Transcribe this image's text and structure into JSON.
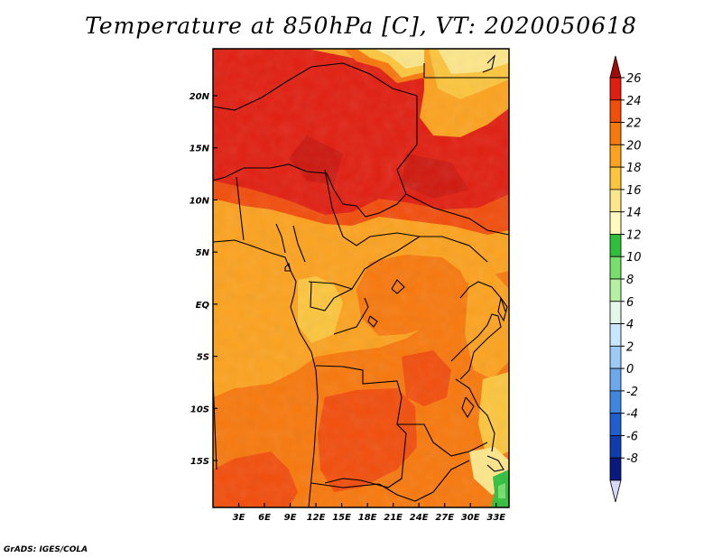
{
  "title": "Temperature at 850hPa [C], VT: 2020050618",
  "credit": "GrADS: IGES/COLA",
  "map": {
    "lon_range": [
      0,
      34.5
    ],
    "lat_range": [
      -19.5,
      24.5
    ],
    "lat_ticks": [
      {
        "label": "20N",
        "lat": 20
      },
      {
        "label": "15N",
        "lat": 15
      },
      {
        "label": "10N",
        "lat": 10
      },
      {
        "label": "5N",
        "lat": 5
      },
      {
        "label": "EQ",
        "lat": 0
      },
      {
        "label": "5S",
        "lat": -5
      },
      {
        "label": "10S",
        "lat": -10
      },
      {
        "label": "15S",
        "lat": -15
      }
    ],
    "lon_ticks": [
      {
        "label": "3E",
        "lon": 3
      },
      {
        "label": "6E",
        "lon": 6
      },
      {
        "label": "9E",
        "lon": 9
      },
      {
        "label": "12E",
        "lon": 12
      },
      {
        "label": "15E",
        "lon": 15
      },
      {
        "label": "18E",
        "lon": 18
      },
      {
        "label": "21E",
        "lon": 21
      },
      {
        "label": "24E",
        "lon": 24
      },
      {
        "label": "27E",
        "lon": 27
      },
      {
        "label": "30E",
        "lon": 30
      },
      {
        "label": "33E",
        "lon": 33
      }
    ]
  },
  "colorbar": {
    "labels": [
      "26",
      "24",
      "22",
      "20",
      "18",
      "16",
      "14",
      "12",
      "10",
      "8",
      "6",
      "4",
      "2",
      "0",
      "-2",
      "-4",
      "-6",
      "-8"
    ],
    "colors": [
      "#a50a0a",
      "#e11e10",
      "#f24d0b",
      "#f8780c",
      "#fca21e",
      "#fcc53c",
      "#fde68a",
      "#fffabe",
      "#2fbf3a",
      "#76e06a",
      "#b5f0a0",
      "#e2f8e8",
      "#c8e6fc",
      "#9ccaf6",
      "#6ea8ec",
      "#3f86e0",
      "#1e5ecf",
      "#103cae",
      "#09197f",
      "#dad8fa"
    ]
  }
}
